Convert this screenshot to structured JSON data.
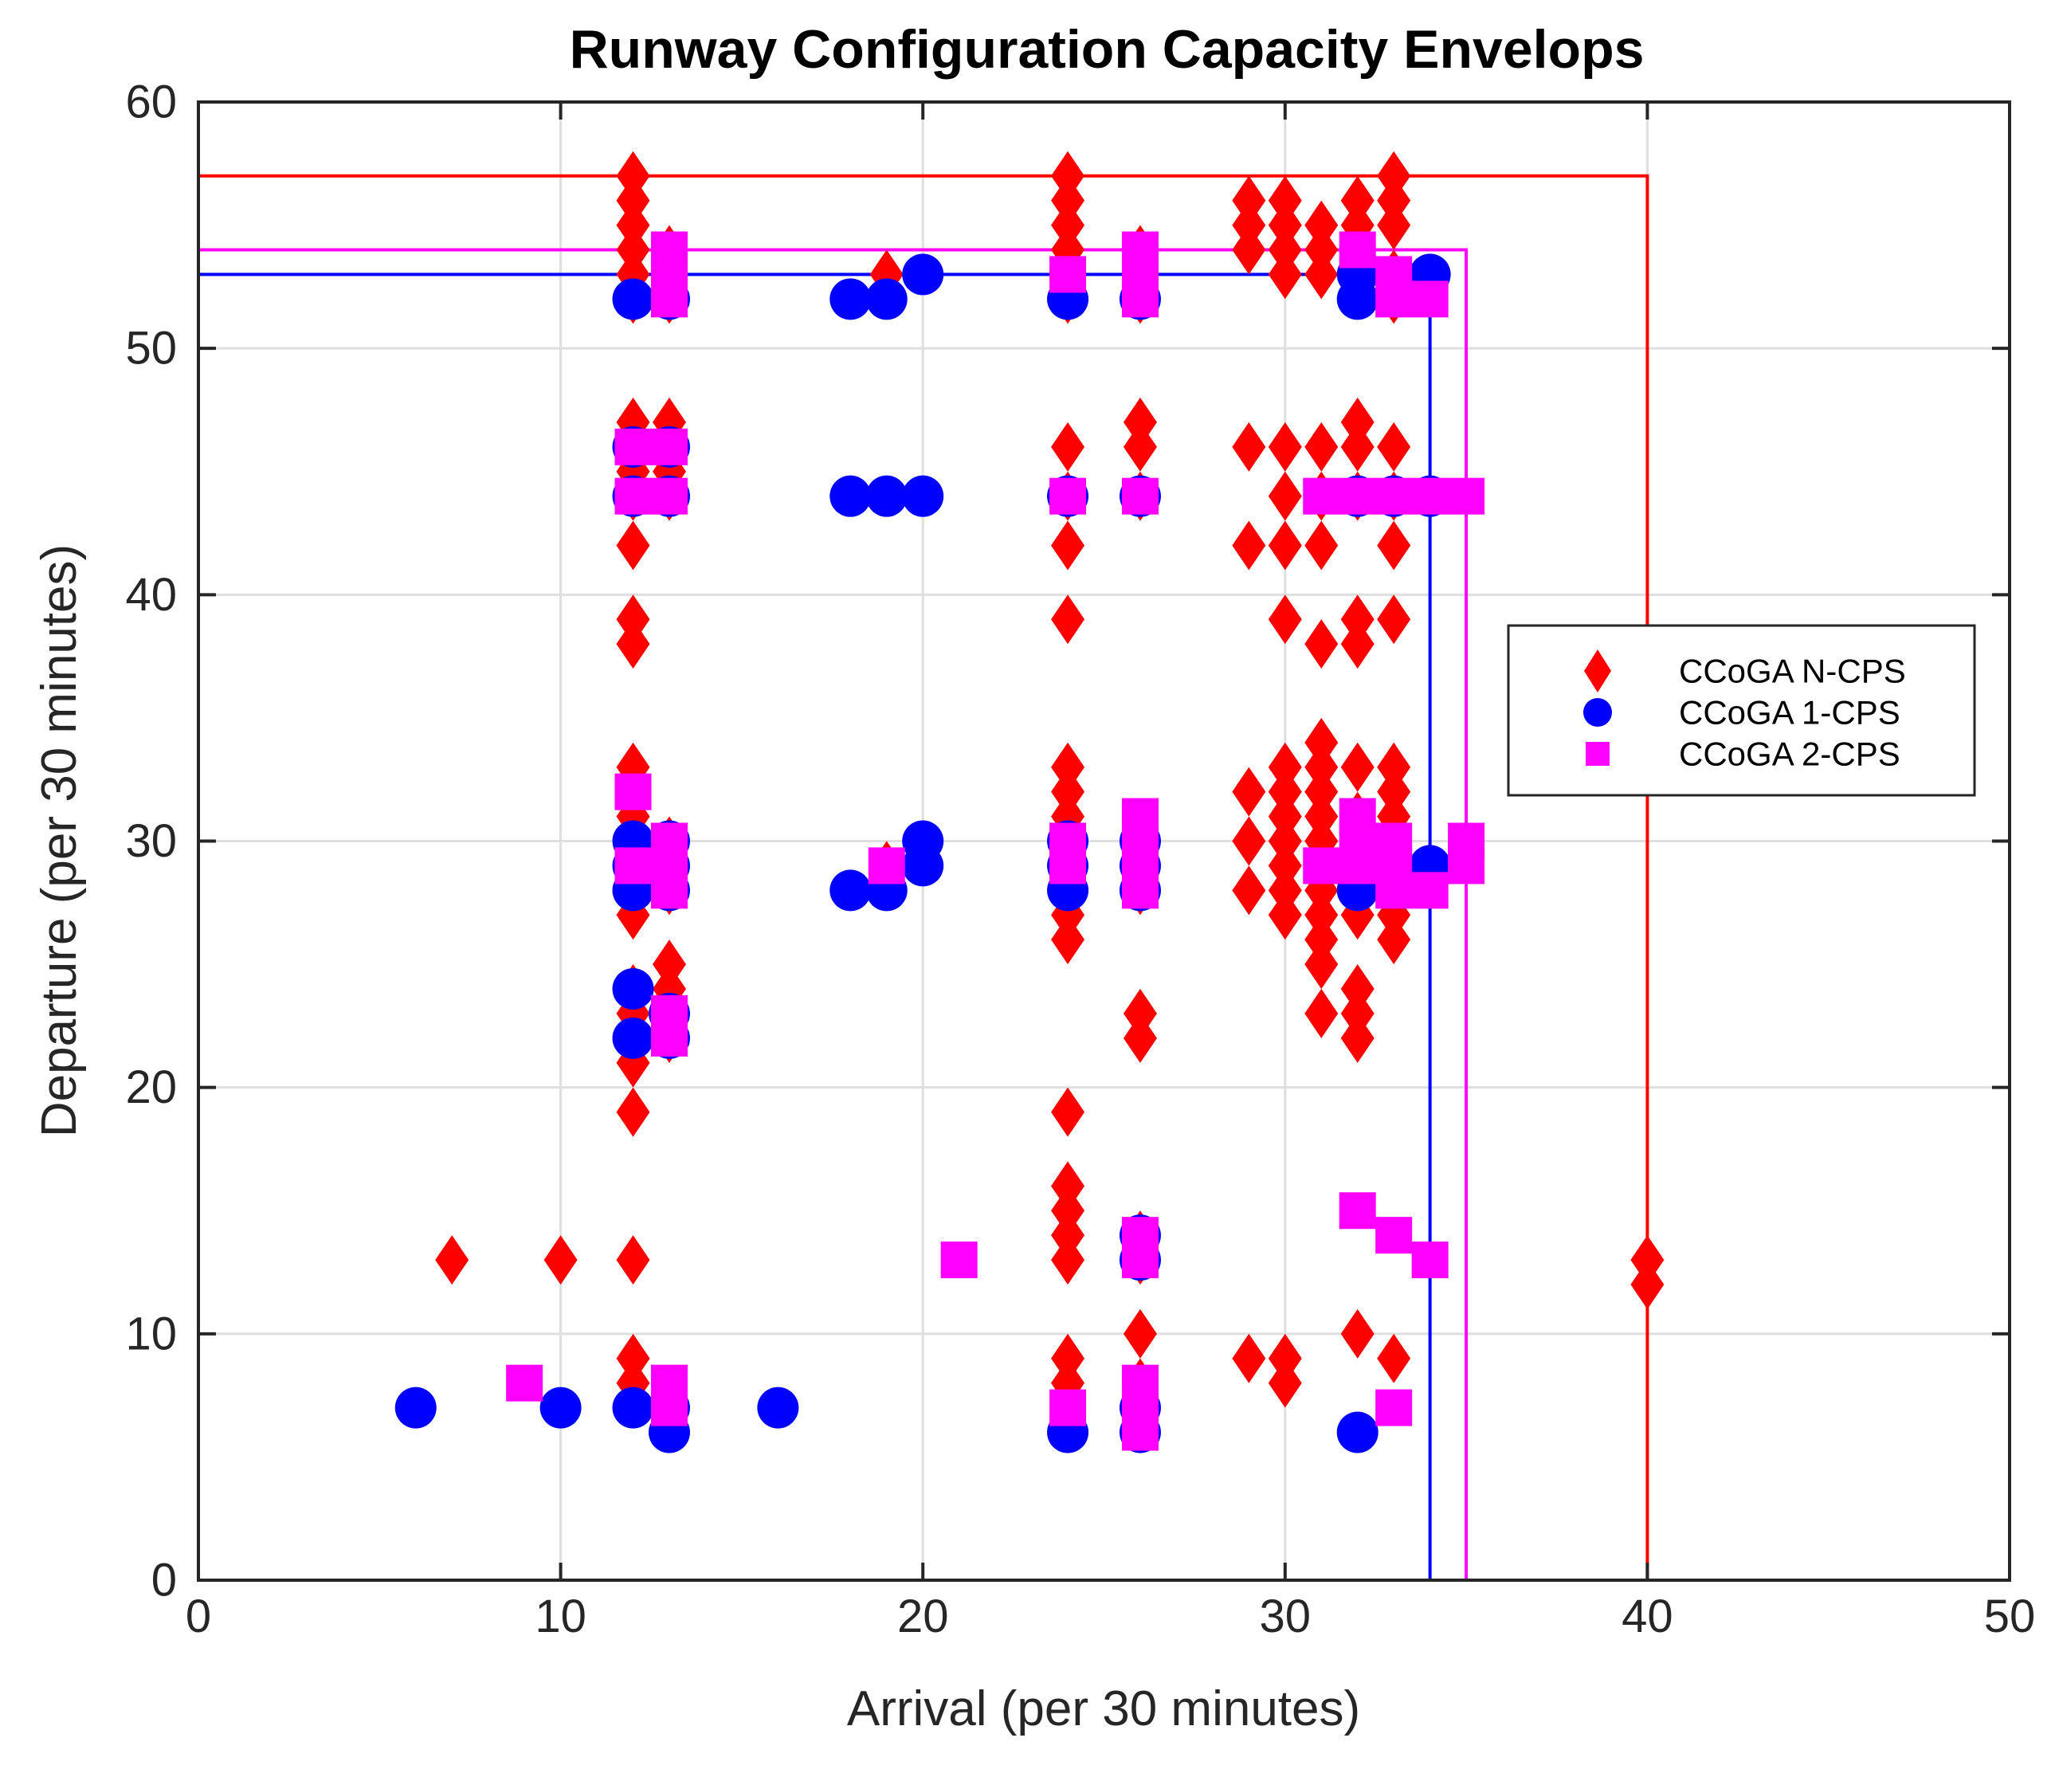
{
  "chart_data": {
    "type": "scatter",
    "title": "Runway Configuration Capacity Envelops",
    "xlabel": "Arrival (per 30 minutes)",
    "ylabel": "Departure (per 30 minutes)",
    "xlim": [
      0,
      50
    ],
    "ylim": [
      0,
      60
    ],
    "xticks": [
      "0",
      "10",
      "20",
      "30",
      "40",
      "50"
    ],
    "yticks": [
      "0",
      "10",
      "20",
      "30",
      "40",
      "50",
      "60"
    ],
    "grid": true,
    "legend_position": "right",
    "series": [
      {
        "name": "CCoGA N-CPS",
        "marker": "diamond",
        "color": "#ff0000",
        "envelope": {
          "max_arrival": 40,
          "max_departure": 57
        },
        "points": [
          [
            12,
            57
          ],
          [
            12,
            56
          ],
          [
            12,
            55
          ],
          [
            12,
            54
          ],
          [
            12,
            53
          ],
          [
            12,
            52
          ],
          [
            12,
            47
          ],
          [
            12,
            46
          ],
          [
            12,
            45
          ],
          [
            12,
            44
          ],
          [
            12,
            42
          ],
          [
            12,
            39
          ],
          [
            12,
            38
          ],
          [
            12,
            33
          ],
          [
            12,
            32
          ],
          [
            12,
            31
          ],
          [
            12,
            30
          ],
          [
            12,
            29
          ],
          [
            12,
            28
          ],
          [
            12,
            27
          ],
          [
            12,
            24
          ],
          [
            12,
            23
          ],
          [
            12,
            21
          ],
          [
            12,
            19
          ],
          [
            12,
            13
          ],
          [
            12,
            9
          ],
          [
            12,
            8
          ],
          [
            13,
            54
          ],
          [
            13,
            53
          ],
          [
            13,
            52
          ],
          [
            13,
            47
          ],
          [
            13,
            46
          ],
          [
            13,
            45
          ],
          [
            13,
            44
          ],
          [
            13,
            30
          ],
          [
            13,
            29
          ],
          [
            13,
            28
          ],
          [
            13,
            25
          ],
          [
            13,
            24
          ],
          [
            13,
            23
          ],
          [
            13,
            22
          ],
          [
            7,
            13
          ],
          [
            10,
            13
          ],
          [
            19,
            53
          ],
          [
            19,
            29
          ],
          [
            24,
            57
          ],
          [
            24,
            56
          ],
          [
            24,
            55
          ],
          [
            24,
            54
          ],
          [
            24,
            53
          ],
          [
            24,
            52
          ],
          [
            24,
            46
          ],
          [
            24,
            44
          ],
          [
            24,
            42
          ],
          [
            24,
            39
          ],
          [
            24,
            33
          ],
          [
            24,
            32
          ],
          [
            24,
            31
          ],
          [
            24,
            30
          ],
          [
            24,
            29
          ],
          [
            24,
            28
          ],
          [
            24,
            27
          ],
          [
            24,
            26
          ],
          [
            24,
            19
          ],
          [
            24,
            16
          ],
          [
            24,
            15
          ],
          [
            24,
            14
          ],
          [
            24,
            13
          ],
          [
            24,
            9
          ],
          [
            24,
            8
          ],
          [
            26,
            54
          ],
          [
            26,
            53
          ],
          [
            26,
            52
          ],
          [
            26,
            47
          ],
          [
            26,
            46
          ],
          [
            26,
            44
          ],
          [
            26,
            30
          ],
          [
            26,
            29
          ],
          [
            26,
            28
          ],
          [
            26,
            23
          ],
          [
            26,
            22
          ],
          [
            26,
            14
          ],
          [
            26,
            13
          ],
          [
            26,
            10
          ],
          [
            26,
            8
          ],
          [
            26,
            7
          ],
          [
            29,
            56
          ],
          [
            29,
            55
          ],
          [
            29,
            54
          ],
          [
            29,
            46
          ],
          [
            29,
            42
          ],
          [
            29,
            32
          ],
          [
            29,
            30
          ],
          [
            29,
            28
          ],
          [
            29,
            9
          ],
          [
            30,
            56
          ],
          [
            30,
            55
          ],
          [
            30,
            54
          ],
          [
            30,
            53
          ],
          [
            30,
            46
          ],
          [
            30,
            44
          ],
          [
            30,
            42
          ],
          [
            30,
            39
          ],
          [
            30,
            33
          ],
          [
            30,
            32
          ],
          [
            30,
            31
          ],
          [
            30,
            30
          ],
          [
            30,
            29
          ],
          [
            30,
            28
          ],
          [
            30,
            27
          ],
          [
            30,
            9
          ],
          [
            30,
            8
          ],
          [
            31,
            55
          ],
          [
            31,
            54
          ],
          [
            31,
            53
          ],
          [
            31,
            46
          ],
          [
            31,
            44
          ],
          [
            31,
            42
          ],
          [
            31,
            38
          ],
          [
            31,
            34
          ],
          [
            31,
            33
          ],
          [
            31,
            32
          ],
          [
            31,
            31
          ],
          [
            31,
            30
          ],
          [
            31,
            29
          ],
          [
            31,
            28
          ],
          [
            31,
            27
          ],
          [
            31,
            26
          ],
          [
            31,
            25
          ],
          [
            31,
            23
          ],
          [
            32,
            56
          ],
          [
            32,
            55
          ],
          [
            32,
            54
          ],
          [
            32,
            47
          ],
          [
            32,
            46
          ],
          [
            32,
            44
          ],
          [
            32,
            39
          ],
          [
            32,
            38
          ],
          [
            32,
            33
          ],
          [
            32,
            31
          ],
          [
            32,
            30
          ],
          [
            32,
            29
          ],
          [
            32,
            28
          ],
          [
            32,
            27
          ],
          [
            32,
            24
          ],
          [
            32,
            23
          ],
          [
            32,
            22
          ],
          [
            32,
            10
          ],
          [
            33,
            57
          ],
          [
            33,
            56
          ],
          [
            33,
            55
          ],
          [
            33,
            53
          ],
          [
            33,
            52
          ],
          [
            33,
            46
          ],
          [
            33,
            44
          ],
          [
            33,
            42
          ],
          [
            33,
            39
          ],
          [
            33,
            33
          ],
          [
            33,
            32
          ],
          [
            33,
            31
          ],
          [
            33,
            30
          ],
          [
            33,
            29
          ],
          [
            33,
            28
          ],
          [
            33,
            27
          ],
          [
            33,
            26
          ],
          [
            33,
            9
          ],
          [
            40,
            13
          ],
          [
            40,
            12
          ]
        ]
      },
      {
        "name": "CCoGA 1-CPS",
        "marker": "circle",
        "color": "#0000ff",
        "envelope": {
          "max_arrival": 34,
          "max_departure": 53
        },
        "points": [
          [
            12,
            52
          ],
          [
            12,
            46
          ],
          [
            12,
            44
          ],
          [
            12,
            30
          ],
          [
            12,
            29
          ],
          [
            12,
            28
          ],
          [
            12,
            24
          ],
          [
            12,
            22
          ],
          [
            12,
            7
          ],
          [
            13,
            52
          ],
          [
            13,
            46
          ],
          [
            13,
            44
          ],
          [
            13,
            30
          ],
          [
            13,
            29
          ],
          [
            13,
            28
          ],
          [
            13,
            23
          ],
          [
            13,
            22
          ],
          [
            13,
            7
          ],
          [
            13,
            6
          ],
          [
            6,
            7
          ],
          [
            10,
            7
          ],
          [
            16,
            7
          ],
          [
            18,
            52
          ],
          [
            19,
            52
          ],
          [
            20,
            53
          ],
          [
            18,
            44
          ],
          [
            19,
            44
          ],
          [
            20,
            44
          ],
          [
            18,
            28
          ],
          [
            19,
            28
          ],
          [
            20,
            30
          ],
          [
            20,
            29
          ],
          [
            24,
            52
          ],
          [
            24,
            44
          ],
          [
            24,
            30
          ],
          [
            24,
            29
          ],
          [
            24,
            28
          ],
          [
            24,
            6
          ],
          [
            26,
            52
          ],
          [
            26,
            44
          ],
          [
            26,
            30
          ],
          [
            26,
            29
          ],
          [
            26,
            28
          ],
          [
            26,
            14
          ],
          [
            26,
            13
          ],
          [
            26,
            7
          ],
          [
            26,
            6
          ],
          [
            32,
            53
          ],
          [
            32,
            52
          ],
          [
            32,
            44
          ],
          [
            32,
            28
          ],
          [
            32,
            6
          ],
          [
            33,
            44
          ],
          [
            34,
            53
          ],
          [
            34,
            44
          ],
          [
            34,
            29
          ]
        ]
      },
      {
        "name": "CCoGA 2-CPS",
        "marker": "square",
        "color": "#ff00ff",
        "envelope": {
          "max_arrival": 35,
          "max_departure": 54
        },
        "points": [
          [
            12,
            46
          ],
          [
            12,
            44
          ],
          [
            12,
            32
          ],
          [
            12,
            29
          ],
          [
            13,
            54
          ],
          [
            13,
            53
          ],
          [
            13,
            52
          ],
          [
            13,
            46
          ],
          [
            13,
            44
          ],
          [
            13,
            30
          ],
          [
            13,
            29
          ],
          [
            13,
            28
          ],
          [
            13,
            23
          ],
          [
            13,
            22
          ],
          [
            13,
            8
          ],
          [
            13,
            7
          ],
          [
            9,
            8
          ],
          [
            19,
            29
          ],
          [
            21,
            13
          ],
          [
            24,
            53
          ],
          [
            24,
            44
          ],
          [
            24,
            30
          ],
          [
            24,
            29
          ],
          [
            24,
            7
          ],
          [
            26,
            54
          ],
          [
            26,
            53
          ],
          [
            26,
            52
          ],
          [
            26,
            44
          ],
          [
            26,
            31
          ],
          [
            26,
            30
          ],
          [
            26,
            29
          ],
          [
            26,
            28
          ],
          [
            26,
            14
          ],
          [
            26,
            13
          ],
          [
            26,
            8
          ],
          [
            26,
            7
          ],
          [
            26,
            6
          ],
          [
            31,
            44
          ],
          [
            31,
            29
          ],
          [
            32,
            54
          ],
          [
            32,
            44
          ],
          [
            32,
            31
          ],
          [
            32,
            30
          ],
          [
            32,
            29
          ],
          [
            32,
            15
          ],
          [
            33,
            53
          ],
          [
            33,
            52
          ],
          [
            33,
            44
          ],
          [
            33,
            30
          ],
          [
            33,
            29
          ],
          [
            33,
            28
          ],
          [
            33,
            14
          ],
          [
            33,
            7
          ],
          [
            34,
            52
          ],
          [
            34,
            44
          ],
          [
            34,
            28
          ],
          [
            34,
            13
          ],
          [
            35,
            44
          ],
          [
            35,
            30
          ],
          [
            35,
            29
          ]
        ]
      }
    ]
  }
}
